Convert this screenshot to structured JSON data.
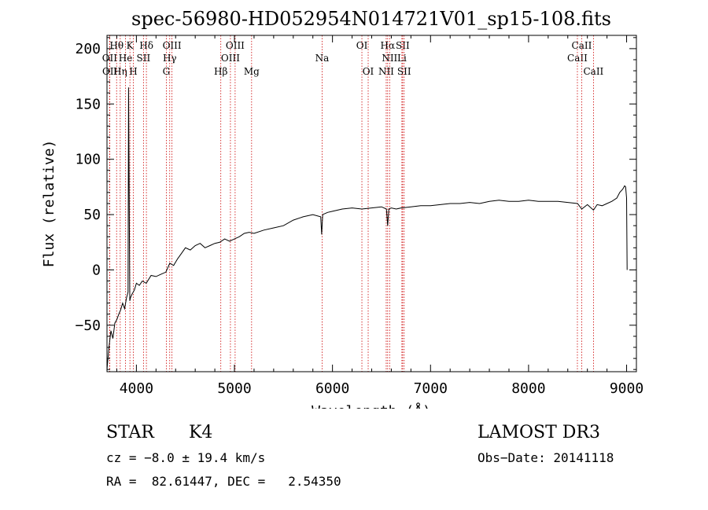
{
  "chart_data": {
    "type": "line",
    "title": "spec-56980-HD052954N014721V01_sp15-108.fits",
    "xlabel": "Wavelength (Å)",
    "ylabel": "Flux (relative)",
    "xlim": [
      3700,
      9100
    ],
    "ylim": [
      -92,
      212
    ],
    "xticks": [
      4000,
      5000,
      6000,
      7000,
      8000,
      9000
    ],
    "yticks": [
      -50,
      0,
      50,
      100,
      150,
      200
    ],
    "series": [
      {
        "name": "flux",
        "x": [
          3700,
          3720,
          3740,
          3760,
          3780,
          3800,
          3820,
          3840,
          3860,
          3880,
          3900,
          3915,
          3920,
          3933,
          3940,
          3955,
          3968,
          3980,
          4000,
          4030,
          4060,
          4100,
          4150,
          4200,
          4250,
          4300,
          4340,
          4380,
          4420,
          4460,
          4500,
          4550,
          4600,
          4650,
          4700,
          4750,
          4800,
          4850,
          4900,
          4950,
          5000,
          5050,
          5100,
          5150,
          5200,
          5300,
          5400,
          5500,
          5600,
          5700,
          5800,
          5880,
          5890,
          5900,
          5950,
          6000,
          6100,
          6200,
          6300,
          6400,
          6500,
          6550,
          6563,
          6575,
          6600,
          6650,
          6700,
          6800,
          6900,
          7000,
          7100,
          7200,
          7300,
          7400,
          7500,
          7600,
          7700,
          7800,
          7900,
          8000,
          8100,
          8200,
          8300,
          8400,
          8500,
          8542,
          8600,
          8662,
          8700,
          8750,
          8800,
          8850,
          8900,
          8930,
          8960,
          8980,
          8990,
          9000,
          9005
        ],
        "y": [
          -90,
          -70,
          -55,
          -62,
          -48,
          -45,
          -40,
          -36,
          -30,
          -35,
          -25,
          -20,
          165,
          -28,
          -25,
          -22,
          -20,
          -18,
          -12,
          -14,
          -10,
          -12,
          -5,
          -6,
          -4,
          -2,
          6,
          4,
          10,
          15,
          20,
          18,
          22,
          24,
          20,
          22,
          24,
          25,
          28,
          26,
          28,
          30,
          33,
          34,
          33,
          36,
          38,
          40,
          45,
          48,
          50,
          48,
          32,
          50,
          52,
          53,
          55,
          56,
          55,
          56,
          57,
          55,
          40,
          55,
          56,
          55,
          56,
          57,
          58,
          58,
          59,
          60,
          60,
          61,
          60,
          62,
          63,
          62,
          62,
          63,
          62,
          62,
          62,
          61,
          60,
          55,
          59,
          54,
          59,
          58,
          60,
          62,
          65,
          70,
          73,
          76,
          75,
          65,
          0
        ]
      }
    ],
    "lines": [
      {
        "label": "Hθ",
        "x": 3798,
        "row": 1
      },
      {
        "label": "OII",
        "x": 3727,
        "row": 2
      },
      {
        "label": "OII",
        "x": 3729,
        "row": 3
      },
      {
        "label": "Hη",
        "x": 3835,
        "row": 3
      },
      {
        "label": "He",
        "x": 3889,
        "row": 2
      },
      {
        "label": "K",
        "x": 3934,
        "row": 1
      },
      {
        "label": "H",
        "x": 3969,
        "row": 3
      },
      {
        "label": "SII",
        "x": 4072,
        "row": 2
      },
      {
        "label": "Hδ",
        "x": 4102,
        "row": 1
      },
      {
        "label": "Hγ",
        "x": 4340,
        "row": 2
      },
      {
        "label": "OIII",
        "x": 4363,
        "row": 1
      },
      {
        "label": "G",
        "x": 4305,
        "row": 3
      },
      {
        "label": "Hβ",
        "x": 4861,
        "row": 3
      },
      {
        "label": "OIII",
        "x": 4959,
        "row": 2
      },
      {
        "label": "OIII",
        "x": 5007,
        "row": 1
      },
      {
        "label": "Mg",
        "x": 5175,
        "row": 3
      },
      {
        "label": "Na",
        "x": 5894,
        "row": 2
      },
      {
        "label": "OI",
        "x": 6300,
        "row": 1
      },
      {
        "label": "OI",
        "x": 6364,
        "row": 3
      },
      {
        "label": "NII",
        "x": 6548,
        "row": 3
      },
      {
        "label": "Hα",
        "x": 6563,
        "row": 1
      },
      {
        "label": "NII",
        "x": 6583,
        "row": 2
      },
      {
        "label": "SII",
        "x": 6716,
        "row": 1
      },
      {
        "label": "Li",
        "x": 6708,
        "row": 2
      },
      {
        "label": "SII",
        "x": 6731,
        "row": 3
      },
      {
        "label": "CaII",
        "x": 8498,
        "row": 2
      },
      {
        "label": "CaII",
        "x": 8542,
        "row": 1
      },
      {
        "label": "CaII",
        "x": 8662,
        "row": 3
      }
    ]
  },
  "info": {
    "object_class": "STAR",
    "subclass": "K4",
    "survey": "LAMOST DR3",
    "cz": "cz = −8.0 ± 19.4 km/s",
    "obs_date": "Obs−Date: 20141118",
    "coords": "RA =  82.61447, DEC =   2.54350"
  },
  "colors": {
    "axis": "#000000",
    "line_marker": "#cc0000",
    "spectrum": "#000000"
  }
}
